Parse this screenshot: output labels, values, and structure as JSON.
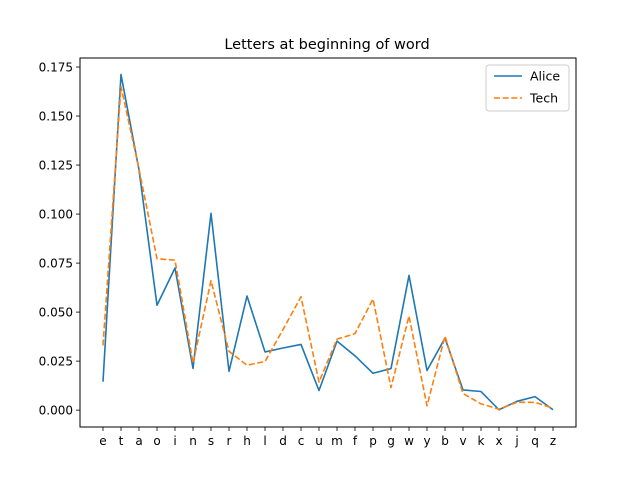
{
  "chart_data": {
    "type": "line",
    "title": "Letters at beginning of word",
    "xlabel": "",
    "ylabel": "",
    "categories": [
      "e",
      "t",
      "a",
      "o",
      "i",
      "n",
      "s",
      "r",
      "h",
      "l",
      "d",
      "c",
      "u",
      "m",
      "f",
      "p",
      "g",
      "w",
      "y",
      "b",
      "v",
      "k",
      "x",
      "j",
      "q",
      "z"
    ],
    "ylim": [
      -0.0086,
      0.1796
    ],
    "yticks": [
      "0.000",
      "0.025",
      "0.050",
      "0.075",
      "0.100",
      "0.125",
      "0.150",
      "0.175"
    ],
    "ytick_values": [
      0,
      0.025,
      0.05,
      0.075,
      0.1,
      0.125,
      0.15,
      0.175
    ],
    "grid": false,
    "legend_position": "top-right",
    "series": [
      {
        "name": "Alice",
        "color": "#1f77b4",
        "style": "solid",
        "values": [
          0.0145,
          0.1712,
          0.1225,
          0.0535,
          0.0725,
          0.0213,
          0.1004,
          0.0198,
          0.0582,
          0.0297,
          0.0317,
          0.0335,
          0.01,
          0.0352,
          0.0277,
          0.0188,
          0.0212,
          0.0687,
          0.0202,
          0.0367,
          0.0103,
          0.0095,
          0.0002,
          0.0045,
          0.0069,
          0.0002
        ]
      },
      {
        "name": "Tech",
        "color": "#ff7f0e",
        "style": "dashed",
        "values": [
          0.033,
          0.165,
          0.123,
          0.0772,
          0.0765,
          0.024,
          0.066,
          0.03,
          0.0229,
          0.0248,
          0.0411,
          0.0578,
          0.0143,
          0.0362,
          0.039,
          0.0567,
          0.0115,
          0.048,
          0.0022,
          0.0377,
          0.0085,
          0.0032,
          0.0005,
          0.004,
          0.004,
          0.001
        ]
      }
    ]
  }
}
